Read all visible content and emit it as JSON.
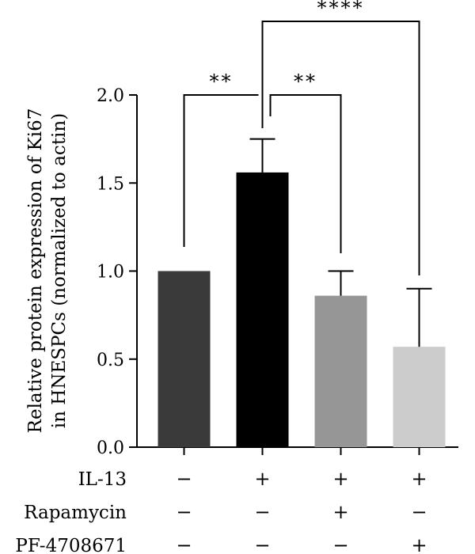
{
  "chart_data": {
    "type": "bar",
    "title": "",
    "ylabel_lines": [
      "Relative protein expression of Ki67",
      "in HNESPCs (normalized to actin)"
    ],
    "xlabel": "",
    "ylim": [
      0,
      2.0
    ],
    "yticks": [
      "0.0",
      "0.5",
      "1.0",
      "1.5",
      "2.0"
    ],
    "bars": [
      {
        "value": 1.0,
        "error": 0.0,
        "color": "#3a3a3a"
      },
      {
        "value": 1.56,
        "error": 0.19,
        "color": "#000000"
      },
      {
        "value": 0.86,
        "error": 0.14,
        "color": "#969696"
      },
      {
        "value": 0.57,
        "error": 0.33,
        "color": "#cccccc"
      }
    ],
    "treatment_rows": [
      {
        "label": "IL-13",
        "signs": [
          "−",
          "+",
          "+",
          "+"
        ]
      },
      {
        "label": "Rapamycin",
        "signs": [
          "−",
          "−",
          "+",
          "−"
        ]
      },
      {
        "label": "PF-4708671",
        "signs": [
          "−",
          "−",
          "−",
          "+"
        ]
      }
    ],
    "significance": [
      {
        "from": 0,
        "to": 1,
        "label": "**"
      },
      {
        "from": 1,
        "to": 2,
        "label": "**"
      },
      {
        "from": 1,
        "to": 3,
        "label": "****"
      }
    ],
    "grid": false,
    "legend": "none"
  }
}
